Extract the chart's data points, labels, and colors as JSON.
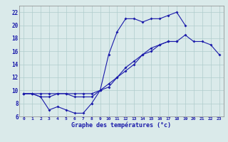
{
  "background_color": "#daeaea",
  "grid_color": "#b0cccc",
  "line_color": "#1a1aaa",
  "xlabel": "Graphe des températures (°c)",
  "xlim": [
    -0.5,
    23.5
  ],
  "ylim": [
    6,
    23
  ],
  "yticks": [
    6,
    8,
    10,
    12,
    14,
    16,
    18,
    20,
    22
  ],
  "xticks": [
    0,
    1,
    2,
    3,
    4,
    5,
    6,
    7,
    8,
    9,
    10,
    11,
    12,
    13,
    14,
    15,
    16,
    17,
    18,
    19,
    20,
    21,
    22,
    23
  ],
  "series1_x": [
    0,
    1,
    2,
    3,
    4,
    5,
    6,
    7,
    8,
    9,
    10,
    11,
    12,
    13,
    14,
    15,
    16,
    17,
    18,
    19
  ],
  "series1_y": [
    9.5,
    9.5,
    9.0,
    7.0,
    7.5,
    7.0,
    6.5,
    6.5,
    8.0,
    10.0,
    15.5,
    19.0,
    21.0,
    21.0,
    20.5,
    21.0,
    21.0,
    21.5,
    22.0,
    20.0
  ],
  "series2_x": [
    0,
    1,
    2,
    3,
    4,
    5,
    6,
    7,
    8,
    9,
    10,
    11,
    12,
    13,
    14,
    15,
    16,
    17,
    18,
    19,
    20,
    21,
    22,
    23
  ],
  "series2_y": [
    9.5,
    9.5,
    9.5,
    9.5,
    9.5,
    9.5,
    9.5,
    9.5,
    9.5,
    10.0,
    11.0,
    12.0,
    13.0,
    14.0,
    15.5,
    16.0,
    17.0,
    17.5,
    17.5,
    18.5,
    17.5,
    17.5,
    17.0,
    15.5
  ],
  "series3_x": [
    0,
    1,
    2,
    3,
    4,
    5,
    6,
    7,
    8,
    9,
    10,
    11,
    12,
    13,
    14,
    15,
    16,
    17,
    18
  ],
  "series3_y": [
    9.5,
    9.5,
    9.0,
    9.0,
    9.5,
    9.5,
    9.0,
    9.0,
    9.0,
    10.0,
    10.5,
    12.0,
    13.5,
    14.5,
    15.5,
    16.5,
    17.0,
    17.5,
    17.5
  ]
}
